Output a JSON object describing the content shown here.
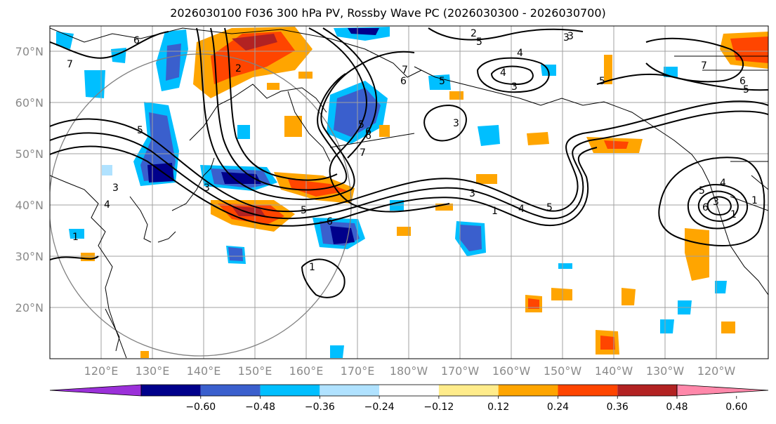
{
  "title": "2026030100 F036 300 hPa PV, Rossby Wave PC (2026030300 - 2026030700)",
  "lat_labels": [
    "70°N",
    "60°N",
    "50°N",
    "40°N",
    "30°N",
    "20°N"
  ],
  "lon_labels": [
    "120°E",
    "130°E",
    "140°E",
    "150°E",
    "160°E",
    "170°E",
    "180°W",
    "170°W",
    "160°W",
    "150°W",
    "140°W",
    "130°W",
    "120°W"
  ],
  "colorbar": {
    "levels": [
      "−0.60",
      "−0.48",
      "−0.36",
      "−0.24",
      "−0.12",
      "0.12",
      "0.24",
      "0.36",
      "0.48",
      "0.60"
    ],
    "colors": [
      "#9b30d9",
      "#00008b",
      "#3a5fcd",
      "#00bfff",
      "#b0e2ff",
      "#ffffff",
      "#ffec8b",
      "#ffa500",
      "#ff4500",
      "#b22222",
      "#ff88aa"
    ]
  },
  "contour_labels": [
    "7",
    "6",
    "5",
    "4",
    "3",
    "3",
    "5",
    "6",
    "7",
    "6",
    "5",
    "1",
    "2",
    "3",
    "4",
    "5",
    "6",
    "7",
    "2",
    "3",
    "5",
    "5",
    "4",
    "3",
    "1",
    "1",
    "4",
    "5",
    "6",
    "7",
    "3",
    "6",
    "5",
    "1",
    "3",
    "3",
    "1",
    "4",
    "5",
    "6"
  ],
  "colors": {
    "contour": "#000000",
    "grid": "#a0a0a0",
    "coast": "#000000",
    "circle": "#808080"
  }
}
